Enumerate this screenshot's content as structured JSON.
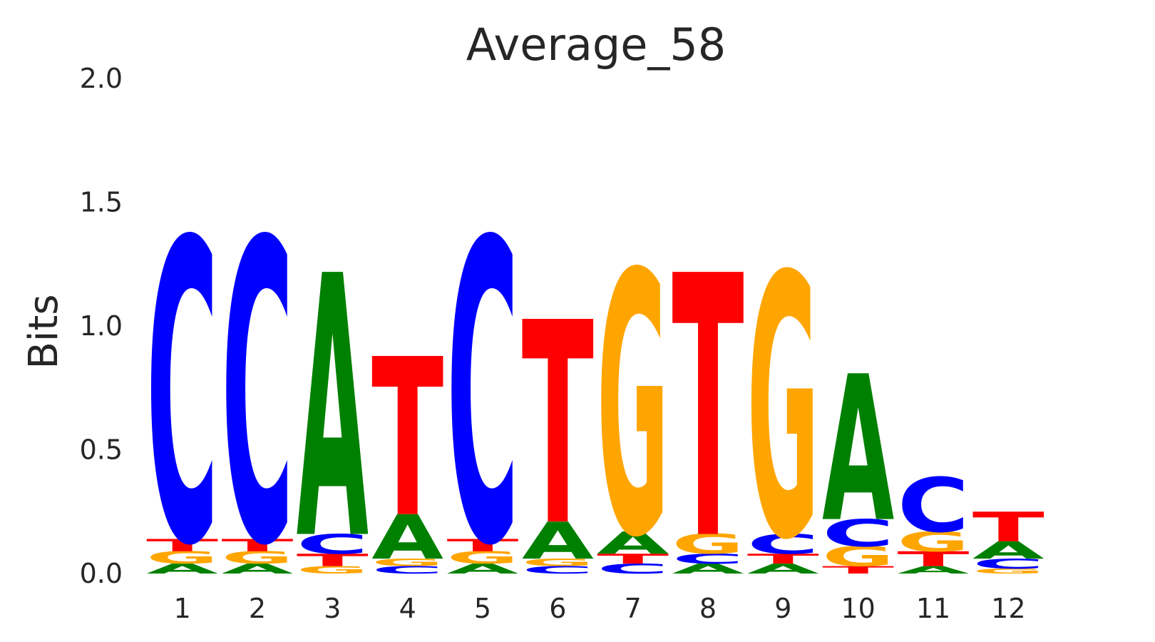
{
  "chart_data": {
    "type": "sequence-logo",
    "title": "Average_58",
    "ylabel": "Bits",
    "xlabel": "",
    "ylim": [
      0,
      2
    ],
    "yticks": [
      "0.0",
      "0.5",
      "1.0",
      "1.5",
      "2.0"
    ],
    "ytick_values": [
      0,
      0.5,
      1.0,
      1.5,
      2.0
    ],
    "grid": false,
    "colors": {
      "A": "#008000",
      "C": "#0000ff",
      "G": "#ffa500",
      "T": "#ff0000"
    },
    "positions": [
      {
        "label": "1",
        "letters": [
          {
            "base": "A",
            "bits": 0.04
          },
          {
            "base": "G",
            "bits": 0.05
          },
          {
            "base": "T",
            "bits": 0.05
          },
          {
            "base": "C",
            "bits": 1.22
          }
        ]
      },
      {
        "label": "2",
        "letters": [
          {
            "base": "A",
            "bits": 0.04
          },
          {
            "base": "G",
            "bits": 0.05
          },
          {
            "base": "T",
            "bits": 0.05
          },
          {
            "base": "C",
            "bits": 1.22
          }
        ]
      },
      {
        "label": "3",
        "letters": [
          {
            "base": "G",
            "bits": 0.03
          },
          {
            "base": "T",
            "bits": 0.05
          },
          {
            "base": "C",
            "bits": 0.08
          },
          {
            "base": "A",
            "bits": 1.06
          }
        ]
      },
      {
        "label": "4",
        "letters": [
          {
            "base": "C",
            "bits": 0.03
          },
          {
            "base": "G",
            "bits": 0.03
          },
          {
            "base": "A",
            "bits": 0.18
          },
          {
            "base": "T",
            "bits": 0.64
          }
        ]
      },
      {
        "label": "5",
        "letters": [
          {
            "base": "A",
            "bits": 0.04
          },
          {
            "base": "G",
            "bits": 0.05
          },
          {
            "base": "T",
            "bits": 0.05
          },
          {
            "base": "C",
            "bits": 1.22
          }
        ]
      },
      {
        "label": "6",
        "letters": [
          {
            "base": "C",
            "bits": 0.03
          },
          {
            "base": "G",
            "bits": 0.03
          },
          {
            "base": "A",
            "bits": 0.15
          },
          {
            "base": "T",
            "bits": 0.82
          }
        ]
      },
      {
        "label": "7",
        "letters": [
          {
            "base": "C",
            "bits": 0.04
          },
          {
            "base": "T",
            "bits": 0.04
          },
          {
            "base": "A",
            "bits": 0.09
          },
          {
            "base": "G",
            "bits": 1.06
          }
        ]
      },
      {
        "label": "8",
        "letters": [
          {
            "base": "A",
            "bits": 0.04
          },
          {
            "base": "C",
            "bits": 0.04
          },
          {
            "base": "G",
            "bits": 0.08
          },
          {
            "base": "T",
            "bits": 1.06
          }
        ]
      },
      {
        "label": "9",
        "letters": [
          {
            "base": "A",
            "bits": 0.04
          },
          {
            "base": "T",
            "bits": 0.04
          },
          {
            "base": "C",
            "bits": 0.08
          },
          {
            "base": "G",
            "bits": 1.06
          }
        ]
      },
      {
        "label": "10",
        "letters": [
          {
            "base": "T",
            "bits": 0.03
          },
          {
            "base": "G",
            "bits": 0.08
          },
          {
            "base": "C",
            "bits": 0.11
          },
          {
            "base": "A",
            "bits": 0.59
          }
        ]
      },
      {
        "label": "11",
        "letters": [
          {
            "base": "A",
            "bits": 0.03
          },
          {
            "base": "T",
            "bits": 0.06
          },
          {
            "base": "G",
            "bits": 0.08
          },
          {
            "base": "C",
            "bits": 0.22
          }
        ]
      },
      {
        "label": "12",
        "letters": [
          {
            "base": "G",
            "bits": 0.02
          },
          {
            "base": "C",
            "bits": 0.04
          },
          {
            "base": "A",
            "bits": 0.07
          },
          {
            "base": "T",
            "bits": 0.12
          }
        ]
      }
    ]
  }
}
